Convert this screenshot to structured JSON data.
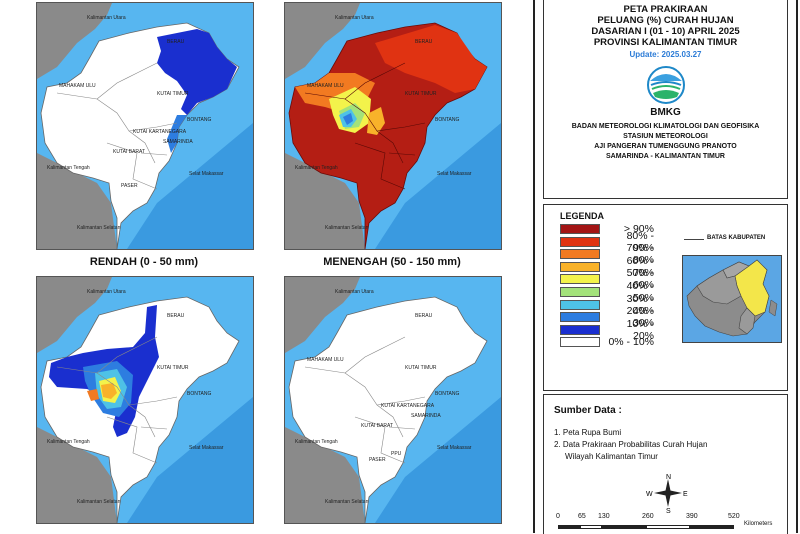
{
  "maps": {
    "panel_captions": [
      "RENDAH (0 - 50 mm)",
      "MENENGAH (50 - 150 mm)"
    ],
    "labels": {
      "kaltara": "Kalimantan Utara",
      "berau": "BERAU",
      "mahakam_ulu": "MAHAKAM ULU",
      "kutai_timur": "KUTAI TIMUR",
      "kutai_kartanegara": "KUTAI KARTANEGARA",
      "kutai_barat": "KUTAI BARAT",
      "bontang": "BONTANG",
      "samarinda": "SAMARINDA",
      "kalteng": "Kalimantan Tengah",
      "paser": "PASER",
      "ppu": "PPU",
      "selat_makassar": "Selat Makassar",
      "kalsel": "Kalimantan Selatan"
    }
  },
  "title": {
    "lines": [
      "PETA PRAKIRAAN",
      "PELUANG (%) CURAH HUJAN",
      "DASARIAN I (01 - 10) APRIL 2025",
      "PROVINSI KALIMANTAN TIMUR"
    ],
    "update": "Update: 2025.03.27",
    "logo_text": "BMKG",
    "institution": [
      "BADAN METEOROLOGI KLIMATOLOGI DAN GEOFISIKA",
      "STASIUN METEOROLOGI",
      "AJI PANGERAN TUMENGGUNG PRANOTO",
      "SAMARINDA - KALIMANTAN TIMUR"
    ]
  },
  "legend": {
    "title": "LEGENDA",
    "boundary_label": "BATAS KABUPATEN",
    "items": [
      {
        "label": "> 90%",
        "color": "#a31515"
      },
      {
        "label": "80% - 90%",
        "color": "#e03312"
      },
      {
        "label": "70% - 80%",
        "color": "#f27a21"
      },
      {
        "label": "60% - 70%",
        "color": "#f8b22a"
      },
      {
        "label": "50% - 60%",
        "color": "#f3f34b"
      },
      {
        "label": "40% - 50%",
        "color": "#a3e27a"
      },
      {
        "label": "30% - 40%",
        "color": "#4ec2e6"
      },
      {
        "label": "20% - 30%",
        "color": "#2d7de0"
      },
      {
        "label": "10% - 20%",
        "color": "#1a2fcf"
      },
      {
        "label": "0% - 10%",
        "color": "#ffffff"
      }
    ]
  },
  "source": {
    "title": "Sumber Data :",
    "items": [
      "1. Peta Rupa Bumi",
      "2. Data Prakiraan Probabilitas Curah Hujan",
      "Wilayah Kalimantan Timur"
    ],
    "compass": {
      "n": "N",
      "s": "S",
      "e": "E",
      "w": "W"
    },
    "scale_ticks": [
      "0",
      "65",
      "130",
      "260",
      "390",
      "520"
    ],
    "scale_unit": "Kilometers"
  }
}
